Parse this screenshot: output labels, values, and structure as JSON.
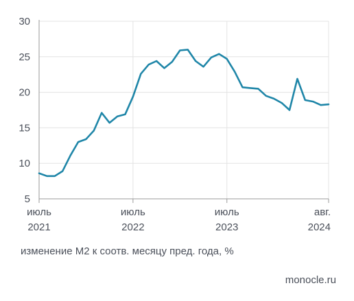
{
  "chart_data": {
    "type": "line",
    "ylim": [
      5,
      30
    ],
    "yticks": [
      5,
      10,
      15,
      20,
      25,
      30
    ],
    "xticks": [
      {
        "month": 0,
        "line1": "июль",
        "line2": "2021"
      },
      {
        "month": 12,
        "line1": "июль",
        "line2": "2022"
      },
      {
        "month": 24,
        "line1": "июль",
        "line2": "2023"
      },
      {
        "month": 37,
        "line1": "авг.",
        "line2": "2024"
      }
    ],
    "grid": true,
    "series": [
      {
        "color": "#1f86a8",
        "x": [
          "2021-07",
          "2021-08",
          "2021-09",
          "2021-10",
          "2021-11",
          "2021-12",
          "2022-01",
          "2022-02",
          "2022-03",
          "2022-04",
          "2022-05",
          "2022-06",
          "2022-07",
          "2022-08",
          "2022-09",
          "2022-10",
          "2022-11",
          "2022-12",
          "2023-01",
          "2023-02",
          "2023-03",
          "2023-04",
          "2023-05",
          "2023-06",
          "2023-07",
          "2023-08",
          "2023-09",
          "2023-10",
          "2023-11",
          "2023-12",
          "2024-01",
          "2024-02",
          "2024-03",
          "2024-04",
          "2024-05",
          "2024-06",
          "2024-07",
          "2024-08"
        ],
        "values": [
          8.6,
          8.2,
          8.2,
          8.9,
          11.1,
          13.0,
          13.4,
          14.6,
          17.1,
          15.7,
          16.6,
          16.9,
          19.4,
          22.6,
          23.9,
          24.4,
          23.4,
          24.3,
          25.9,
          26.0,
          24.4,
          23.6,
          24.9,
          25.4,
          24.7,
          22.9,
          20.7,
          20.6,
          20.5,
          19.5,
          19.1,
          18.5,
          17.5,
          21.9,
          18.9,
          18.7,
          18.2,
          18.3
        ]
      }
    ],
    "caption": "изменение М2 к соотв. месяцу пред. года, %"
  },
  "source": "monocle.ru"
}
